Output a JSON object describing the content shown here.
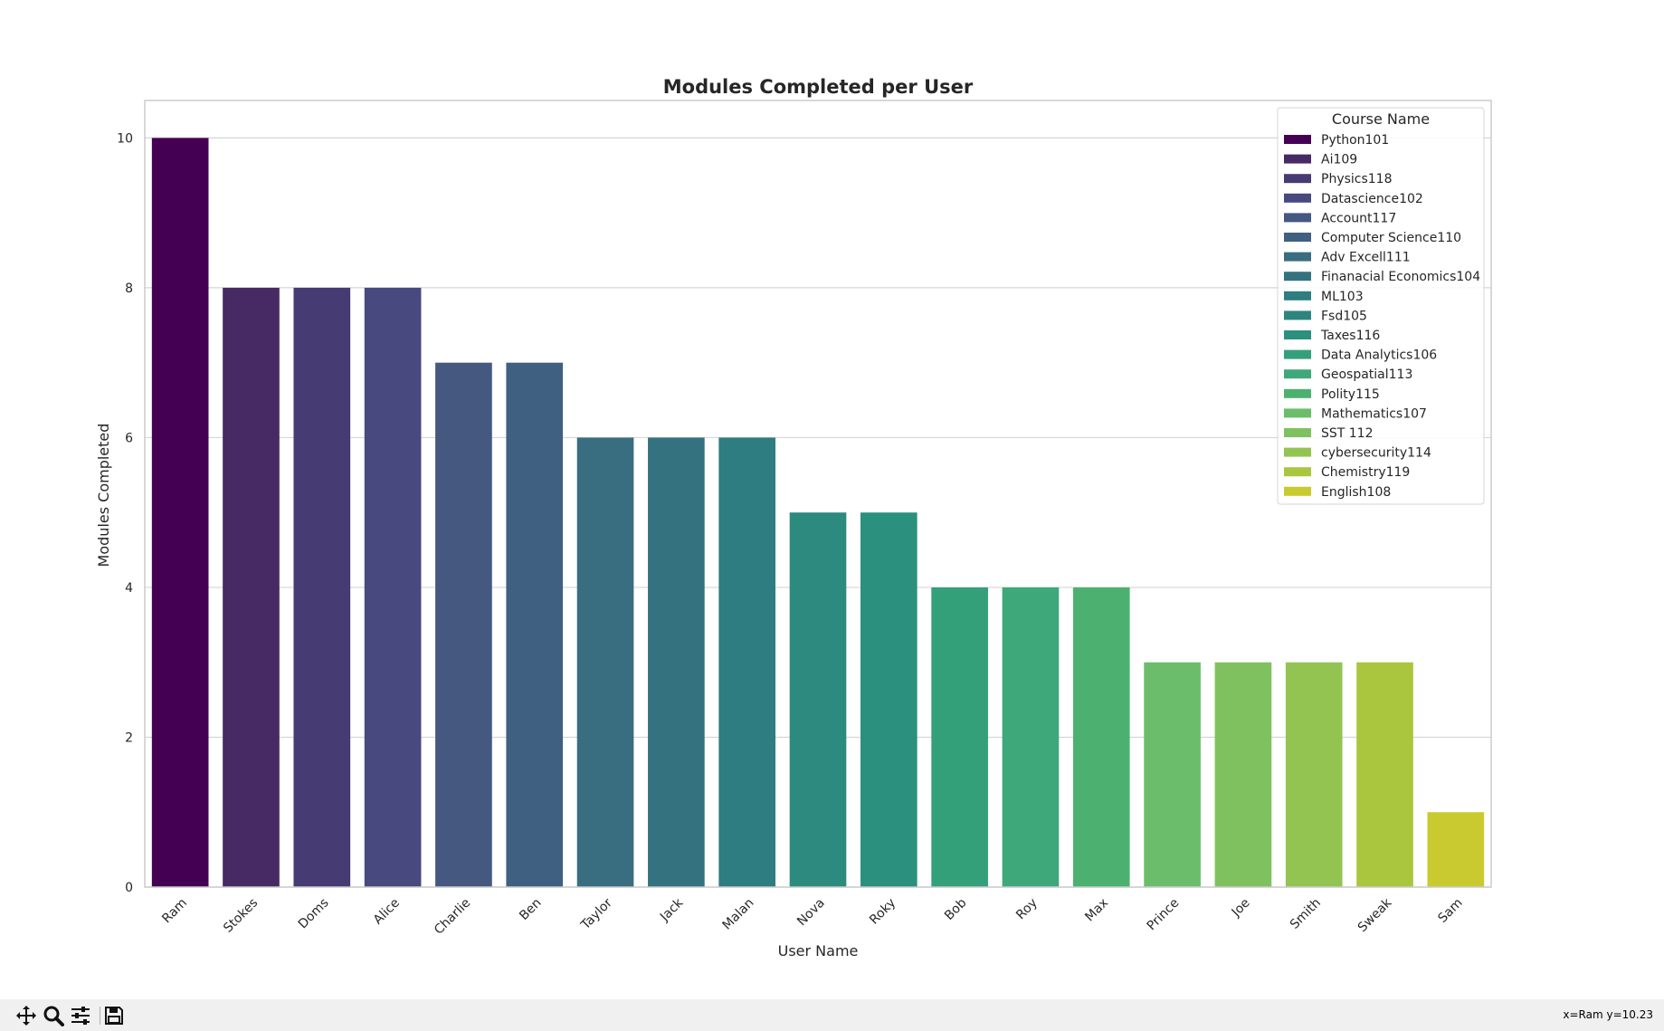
{
  "chart_data": {
    "type": "bar",
    "title": "Modules Completed per User",
    "xlabel": "User Name",
    "ylabel": "Modules Completed",
    "ylim": [
      0,
      10.5
    ],
    "yticks": [
      0,
      2,
      4,
      6,
      8,
      10
    ],
    "grid": "horizontal",
    "legend_title": "Course Name",
    "legend_position": "top-right",
    "categories": [
      "Ram",
      "Stokes",
      "Doms",
      "Alice",
      "Charlie",
      "Ben",
      "Taylor",
      "Jack",
      "Malan",
      "Nova",
      "Roky",
      "Bob",
      "Roy",
      "Max",
      "Prince",
      "Joe",
      "Smith",
      "Sweak",
      "Sam"
    ],
    "values": [
      10,
      8,
      8,
      8,
      7,
      7,
      6,
      6,
      6,
      5,
      5,
      4,
      4,
      4,
      3,
      3,
      3,
      3,
      1
    ],
    "colors": [
      "#440154",
      "#472a64",
      "#473b73",
      "#47497f",
      "#445880",
      "#3f6081",
      "#396d80",
      "#34727f",
      "#2e7d80",
      "#2d8a7f",
      "#2c907e",
      "#34a07a",
      "#3fa87a",
      "#4cb170",
      "#6bbd6b",
      "#7fc15f",
      "#93c452",
      "#a9c63e",
      "#c8ca30"
    ],
    "legend": [
      {
        "label": "Python101",
        "color": "#440154"
      },
      {
        "label": "Ai109",
        "color": "#472a64"
      },
      {
        "label": "Physics118",
        "color": "#473b73"
      },
      {
        "label": "Datascience102",
        "color": "#47497f"
      },
      {
        "label": "Account117",
        "color": "#445880"
      },
      {
        "label": "Computer Science110",
        "color": "#3f6081"
      },
      {
        "label": "Adv Excell111",
        "color": "#396d80"
      },
      {
        "label": "Finanacial Economics104",
        "color": "#34727f"
      },
      {
        "label": "ML103",
        "color": "#2e7d80"
      },
      {
        "label": "Fsd105",
        "color": "#2e8580"
      },
      {
        "label": "Taxes116",
        "color": "#2c907e"
      },
      {
        "label": "Data Analytics106",
        "color": "#34a07a"
      },
      {
        "label": "Geospatial113",
        "color": "#3fa87a"
      },
      {
        "label": "Polity115",
        "color": "#4cb170"
      },
      {
        "label": "Mathematics107",
        "color": "#6bbd6b"
      },
      {
        "label": "SST 112",
        "color": "#7fc15f"
      },
      {
        "label": "cybersecurity114",
        "color": "#93c452"
      },
      {
        "label": "Chemistry119",
        "color": "#a9c63e"
      },
      {
        "label": "English108",
        "color": "#c8ca30"
      }
    ]
  },
  "toolbar": {
    "icons": [
      "pan-icon",
      "zoom-icon",
      "configure-subplots-icon",
      "save-icon"
    ],
    "coord_readout": "x=Ram y=10.23"
  }
}
